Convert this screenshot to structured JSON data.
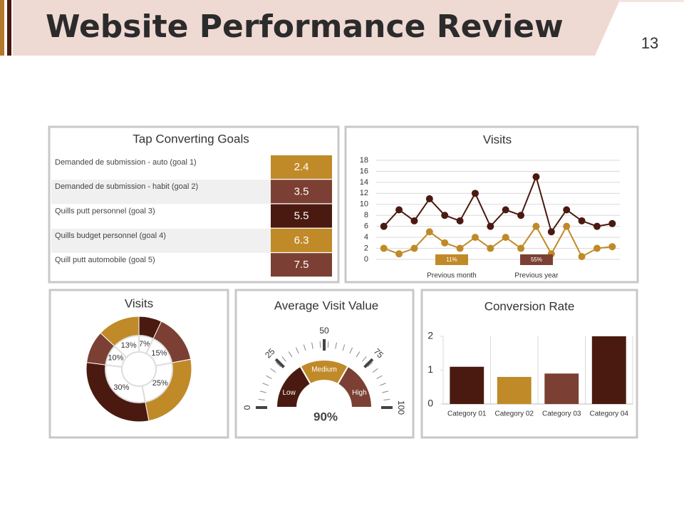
{
  "header": {
    "title": "Website Performance Review",
    "page_number": "13"
  },
  "table": {
    "title": "Tap Converting Goals",
    "rows": [
      [
        "Demanded de submission - auto (goal 1)",
        2.4
      ],
      [
        "Demanded de submission - habit (goal 2)",
        3.5
      ],
      [
        "Quills putt personnel (goal 3)",
        5.5
      ],
      [
        "Quills budget personnel (goal 4)",
        6.3
      ],
      [
        "Quill putt automobile (goal 5)",
        7.5
      ]
    ],
    "colors": [
      "#c08a28",
      "#7b4033",
      "#4a1a10",
      "#c08a28",
      "#7b4033"
    ]
  },
  "chart_data": [
    {
      "type": "line",
      "title": "Visits",
      "categories": [
        null,
        null,
        null,
        null,
        null,
        null,
        null,
        null,
        null,
        null,
        null,
        null,
        null,
        null,
        null,
        null
      ],
      "series": [
        {
          "name": "Previous month",
          "color": "#4a1a10",
          "values": [
            6,
            9,
            7,
            11,
            8,
            7,
            12,
            6,
            9,
            8,
            15,
            5,
            9,
            7,
            6,
            6.5
          ]
        },
        {
          "name": "Previous year",
          "color": "#c08a28",
          "values": [
            2,
            1,
            2,
            5,
            3,
            2,
            4,
            2,
            4,
            2,
            6,
            1,
            6,
            0.5,
            2,
            2.3
          ]
        }
      ],
      "annotations": [
        {
          "text": "11%",
          "color": "#c08a28"
        },
        {
          "text": "55%",
          "color": "#7b4033"
        }
      ],
      "ylim": [
        0,
        18
      ],
      "yticks": [
        0,
        2,
        4,
        6,
        8,
        10,
        12,
        14,
        16,
        18
      ],
      "grid": true
    },
    {
      "type": "donut",
      "title": "Visits",
      "values": [
        7,
        15,
        25,
        30,
        10,
        13
      ],
      "value_labels": [
        "7%",
        "15%",
        "25%",
        "30%",
        "10%",
        "13%"
      ],
      "colors": [
        "#4a1a10",
        "#7b4033",
        "#c08a28",
        "#4a1a10",
        "#7b4033",
        "#c08a28"
      ]
    },
    {
      "type": "gauge",
      "title": "Average Visit Value",
      "value": 90,
      "value_label": "90%",
      "xlim": [
        0,
        100
      ],
      "xticks": [
        0,
        25,
        50,
        75,
        100
      ],
      "bands": [
        {
          "name": "Low",
          "color": "#4a1a10"
        },
        {
          "name": "Medium",
          "color": "#c08a28"
        },
        {
          "name": "High",
          "color": "#7b4033"
        }
      ]
    },
    {
      "type": "bar",
      "title": "Conversion Rate",
      "categories": [
        "Category 01",
        "Category 02",
        "Category 03",
        "Category 04"
      ],
      "values": [
        1.1,
        0.8,
        0.9,
        2.0
      ],
      "colors": [
        "#4a1a10",
        "#c08a28",
        "#7b4033",
        "#4a1a10"
      ],
      "ylim": [
        0,
        2
      ],
      "yticks": [
        0,
        1,
        2
      ],
      "grid": true
    }
  ]
}
